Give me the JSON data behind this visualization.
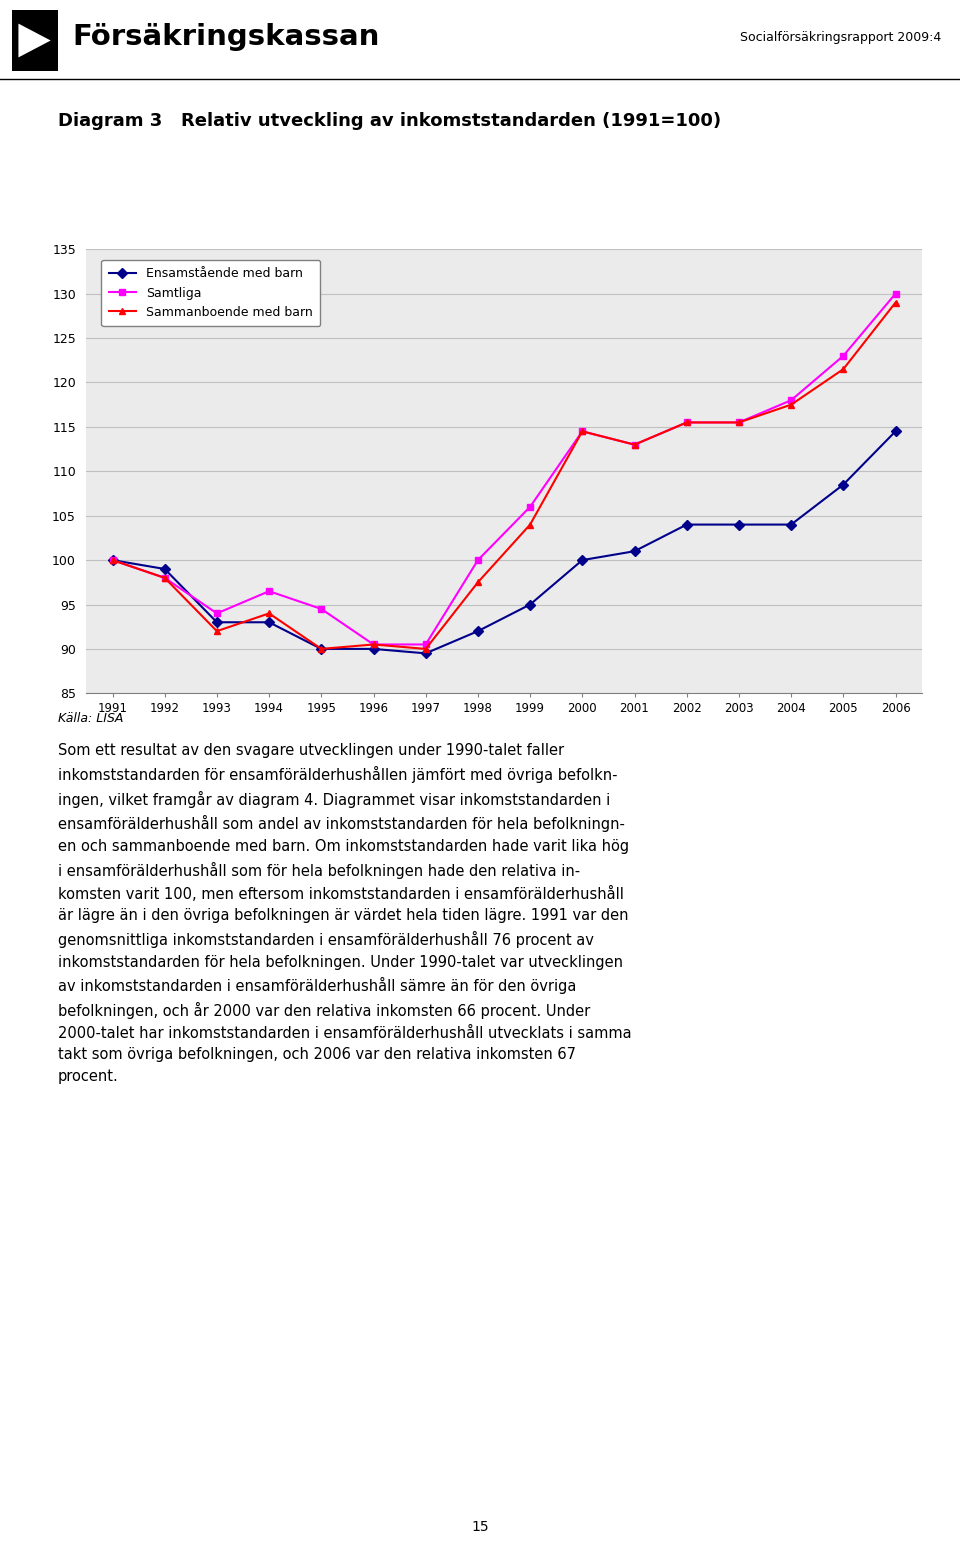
{
  "title": "Diagram 3   Relativ utveckling av inkomststandarden (1991=100)",
  "header_title": "Försäkringskassan",
  "header_right": "Socialförsäkringsrapport 2009:4",
  "source_label": "Källa: LISA",
  "years": [
    1991,
    1992,
    1993,
    1994,
    1995,
    1996,
    1997,
    1998,
    1999,
    2000,
    2001,
    2002,
    2003,
    2004,
    2005,
    2006
  ],
  "ensamstaende": [
    100,
    99,
    93,
    93,
    90,
    90,
    89.5,
    92,
    95,
    100,
    101,
    104,
    104,
    104,
    108.5,
    114.5
  ],
  "samtliga": [
    100,
    98,
    94,
    96.5,
    94.5,
    90.5,
    90.5,
    100,
    106,
    114.5,
    113,
    115.5,
    115.5,
    118,
    123,
    130
  ],
  "sammanboende": [
    100,
    98,
    92,
    94,
    90,
    90.5,
    90,
    97.5,
    104,
    114.5,
    113,
    115.5,
    115.5,
    117.5,
    121.5,
    129
  ],
  "line_color_ensamstaende": "#00008B",
  "line_color_samtliga": "#FF00FF",
  "line_color_sammanboende": "#FF0000",
  "marker_ensamstaende": "D",
  "marker_samtliga": "s",
  "marker_sammanboende": "^",
  "ylim": [
    85,
    135
  ],
  "yticks": [
    85,
    90,
    95,
    100,
    105,
    110,
    115,
    120,
    125,
    130,
    135
  ],
  "legend_labels": [
    "Ensamstående med barn",
    "Samtliga",
    "Sammanboende med barn"
  ],
  "grid_color": "#C0C0C0",
  "background_color": "#FFFFFF",
  "plot_bg_color": "#EBEBEB",
  "body_text_lines": [
    "Som ett resultat av den svagare utvecklingen under 1990-talet faller",
    "inkomststandarden för ensamförälderhushållen jämfört med övriga befolkn-",
    "ingen, vilket framgår av diagram 4. Diagrammet visar inkomststandarden i",
    "ensamförälderhushåll som andel av inkomststandarden för hela befolkningn-",
    "en och sammanboende med barn. Om inkomststandarden hade varit lika hög",
    "i ensamförälderhushåll som för hela befolkningen hade den relativa in-",
    "komsten varit 100, men eftersom inkomststandarden i ensamförälderhushåll",
    "är lägre än i den övriga befolkningen är värdet hela tiden lägre. 1991 var den",
    "genomsnittliga inkomststandarden i ensamförälderhushåll 76 procent av",
    "inkomststandarden för hela befolkningen. Under 1990-talet var utvecklingen",
    "av inkomststandarden i ensamförälderhushåll sämre än för den övriga",
    "befolkningen, och år 2000 var den relativa inkomsten 66 procent. Under",
    "2000-talet har inkomststandarden i ensamförälderhushåll utvecklats i samma",
    "takt som övriga befolkningen, och 2006 var den relativa inkomsten 67",
    "procent."
  ],
  "page_number": "15"
}
